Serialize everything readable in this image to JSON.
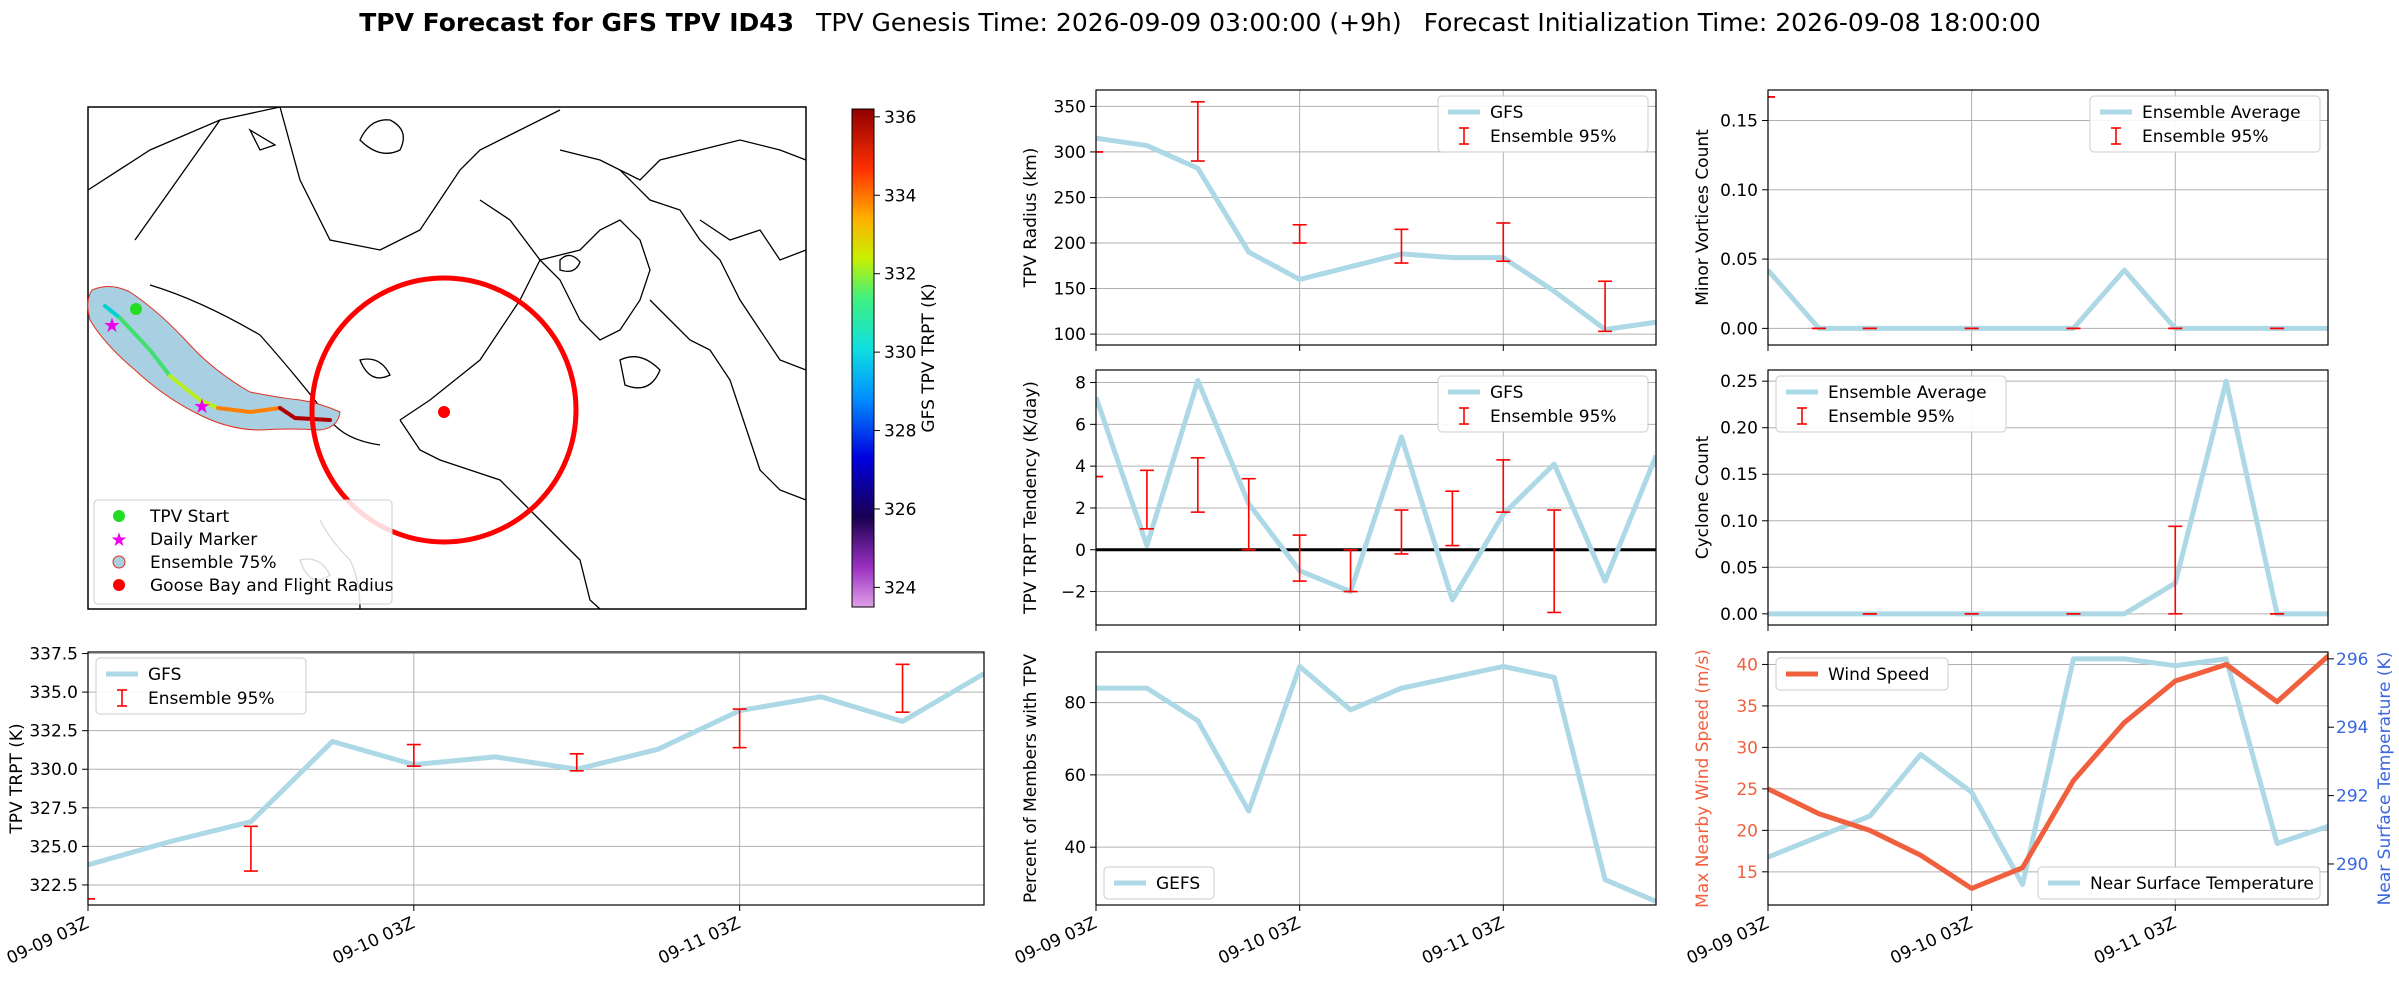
{
  "header": {
    "title_bold": "TPV Forecast for GFS TPV ID43",
    "genesis": "TPV Genesis Time: 2026-09-09 03:00:00 (+9h)",
    "init": "Forecast Initialization Time: 2026-09-08 18:00:00"
  },
  "map": {
    "colorbar": {
      "label": "GFS TPV TRPT (K)",
      "ticks": [
        "324",
        "326",
        "328",
        "330",
        "332",
        "334",
        "336"
      ],
      "range": [
        323.5,
        336.2
      ]
    },
    "legend": [
      {
        "label": "TPV Start",
        "color": "#22dd22",
        "marker": "circle"
      },
      {
        "label": "Daily Marker",
        "color": "#ee00ee",
        "marker": "star"
      },
      {
        "label": "Ensemble 75%",
        "color": "#a9cfe2",
        "marker": "circle-outline"
      },
      {
        "label": "Goose Bay and Flight Radius",
        "color": "#ff0000",
        "marker": "circle"
      }
    ]
  },
  "time_axis": {
    "tick_labels": [
      "09-09 03Z",
      "09-10 03Z",
      "09-11 03Z"
    ]
  },
  "chart_data": [
    {
      "id": "trpt",
      "type": "line",
      "ylabel": "TPV TRPT (K)",
      "ylim": [
        321.2,
        337.6
      ],
      "yticks": [
        322.5,
        325.0,
        327.5,
        330.0,
        332.5,
        335.0,
        337.5
      ],
      "ytick_labels": [
        "322.5",
        "325.0",
        "327.5",
        "330.0",
        "332.5",
        "335.0",
        "337.5"
      ],
      "x": [
        0,
        0.25,
        0.5,
        0.75,
        1,
        1.25,
        1.5,
        1.75,
        2,
        2.25,
        2.5,
        2.75
      ],
      "series": [
        {
          "name": "GFS",
          "values": [
            323.8,
            325.3,
            326.6,
            331.8,
            330.3,
            330.8,
            330.0,
            331.3,
            333.8,
            334.7,
            333.1,
            336.2
          ]
        }
      ],
      "errorbars": {
        "name": "Ensemble 95%",
        "points": [
          [
            0,
            321.6,
            321.6
          ],
          [
            0.5,
            323.4,
            326.3
          ],
          [
            1,
            330.2,
            331.6
          ],
          [
            1.5,
            329.9,
            331.0
          ],
          [
            2,
            331.4,
            333.9
          ],
          [
            2.5,
            333.7,
            336.8
          ]
        ]
      },
      "legend": "upper left"
    },
    {
      "id": "radius",
      "type": "line",
      "ylabel": "TPV Radius (km)",
      "ylim": [
        88,
        368
      ],
      "yticks": [
        100,
        150,
        200,
        250,
        300,
        350
      ],
      "ytick_labels": [
        "100",
        "150",
        "200",
        "250",
        "300",
        "350"
      ],
      "x": [
        0,
        0.25,
        0.5,
        0.75,
        1,
        1.25,
        1.5,
        1.75,
        2,
        2.25,
        2.5,
        2.75
      ],
      "series": [
        {
          "name": "GFS",
          "values": [
            315,
            307,
            282,
            190,
            160,
            174,
            188,
            184,
            184,
            147,
            105,
            113
          ]
        }
      ],
      "errorbars": {
        "name": "Ensemble 95%",
        "points": [
          [
            0,
            300,
            300
          ],
          [
            0.5,
            290,
            355
          ],
          [
            1,
            200,
            220
          ],
          [
            1.5,
            178,
            215
          ],
          [
            2,
            180,
            222
          ],
          [
            2.5,
            103,
            158
          ]
        ]
      },
      "legend": "upper right"
    },
    {
      "id": "tendency",
      "type": "line",
      "ylabel": "TPV TRPT Tendency (K/day)",
      "ylim": [
        -3.6,
        8.6
      ],
      "yticks": [
        -2,
        0,
        2,
        4,
        6,
        8
      ],
      "ytick_labels": [
        "−2",
        "0",
        "2",
        "4",
        "6",
        "8"
      ],
      "zero_line": true,
      "x": [
        0,
        0.25,
        0.5,
        0.75,
        1,
        1.25,
        1.5,
        1.75,
        2,
        2.25,
        2.5,
        2.75
      ],
      "series": [
        {
          "name": "GFS",
          "values": [
            7.3,
            0.2,
            8.1,
            2.2,
            -1.0,
            -2.0,
            5.4,
            -2.4,
            1.7,
            4.1,
            -1.5,
            4.5
          ]
        }
      ],
      "errorbars": {
        "name": "Ensemble 95%",
        "points": [
          [
            0,
            3.5,
            3.5
          ],
          [
            0.25,
            1.0,
            3.8
          ],
          [
            0.5,
            1.8,
            4.4
          ],
          [
            0.75,
            0.0,
            3.4
          ],
          [
            1,
            -1.5,
            0.7
          ],
          [
            1.25,
            -2.0,
            0.0
          ],
          [
            1.5,
            -0.2,
            1.9
          ],
          [
            1.75,
            0.2,
            2.8
          ],
          [
            2,
            1.8,
            4.3
          ],
          [
            2.25,
            -3.0,
            1.9
          ]
        ]
      },
      "legend": "upper right"
    },
    {
      "id": "percent",
      "type": "line",
      "ylabel": "Percent of Members with TPV",
      "ylim": [
        24,
        94
      ],
      "yticks": [
        40,
        60,
        80
      ],
      "ytick_labels": [
        "40",
        "60",
        "80"
      ],
      "x": [
        0,
        0.25,
        0.5,
        0.75,
        1,
        1.25,
        1.5,
        1.75,
        2,
        2.25,
        2.5,
        2.75
      ],
      "series": [
        {
          "name": "GEFS",
          "values": [
            84,
            84,
            75,
            50,
            90,
            78,
            84,
            87,
            90,
            87,
            31,
            25
          ]
        }
      ],
      "legend": "lower left"
    },
    {
      "id": "minor",
      "type": "line",
      "ylabel": "Minor Vortices Count",
      "ylim": [
        -0.012,
        0.172
      ],
      "yticks": [
        0.0,
        0.05,
        0.1,
        0.15
      ],
      "ytick_labels": [
        "0.00",
        "0.05",
        "0.10",
        "0.15"
      ],
      "x": [
        0,
        0.25,
        0.5,
        0.75,
        1,
        1.25,
        1.5,
        1.75,
        2,
        2.25,
        2.5,
        2.75,
        3.0
      ],
      "series": [
        {
          "name": "Ensemble Average",
          "values": [
            0.042,
            0,
            0,
            0,
            0,
            0,
            0,
            0.042,
            0,
            0,
            0,
            0,
            0
          ]
        }
      ],
      "errorbars": {
        "name": "Ensemble 95%",
        "points": [
          [
            0,
            0.167,
            0.167
          ],
          [
            0.25,
            0,
            0
          ],
          [
            0.5,
            0,
            0
          ],
          [
            1,
            0,
            0
          ],
          [
            1.5,
            0,
            0
          ],
          [
            2,
            0,
            0
          ],
          [
            2.5,
            0,
            0
          ]
        ]
      },
      "legend": "upper right"
    },
    {
      "id": "cyclone",
      "type": "line",
      "ylabel": "Cyclone Count",
      "ylim": [
        -0.012,
        0.262
      ],
      "yticks": [
        0.0,
        0.05,
        0.1,
        0.15,
        0.2,
        0.25
      ],
      "ytick_labels": [
        "0.00",
        "0.05",
        "0.10",
        "0.15",
        "0.20",
        "0.25"
      ],
      "x": [
        0,
        0.25,
        0.5,
        0.75,
        1,
        1.25,
        1.5,
        1.75,
        2,
        2.25,
        2.5,
        2.75,
        3.0
      ],
      "series": [
        {
          "name": "Ensemble Average",
          "values": [
            0,
            0,
            0,
            0,
            0,
            0,
            0,
            0,
            0.033,
            0.25,
            0,
            0,
            0
          ]
        }
      ],
      "errorbars": {
        "name": "Ensemble 95%",
        "points": [
          [
            0.5,
            0,
            0
          ],
          [
            1,
            0,
            0
          ],
          [
            1.5,
            0,
            0
          ],
          [
            2,
            0,
            0.094
          ],
          [
            2.5,
            0,
            0
          ]
        ]
      },
      "legend": "upper left"
    },
    {
      "id": "weather",
      "type": "line",
      "ylabel": "Max Nearby Wind Speed (m/s)",
      "ylabel_right": "Near Surface Temperature (K)",
      "ylim": [
        11,
        41.5
      ],
      "ylim_right": [
        288.8,
        296.2
      ],
      "yticks": [
        15,
        20,
        25,
        30,
        35,
        40
      ],
      "ytick_labels": [
        "15",
        "20",
        "25",
        "30",
        "35",
        "40"
      ],
      "yticks_right": [
        290,
        292,
        294,
        296
      ],
      "ytick_labels_right": [
        "290",
        "292",
        "294",
        "296"
      ],
      "x": [
        0,
        0.25,
        0.5,
        0.75,
        1,
        1.25,
        1.5,
        1.75,
        2,
        2.25,
        2.5,
        2.75,
        3.0
      ],
      "series": [
        {
          "name": "Wind Speed",
          "color": "#f0603f",
          "axis": "left",
          "values": [
            25,
            22,
            20,
            17,
            13,
            15.5,
            26,
            33,
            38,
            40,
            35.5,
            41,
            41
          ]
        },
        {
          "name": "Near Surface Temperature",
          "color": "#add8e6",
          "axis": "right",
          "values": [
            290.2,
            290.8,
            291.4,
            293.2,
            292.1,
            289.4,
            296.0,
            296.0,
            295.8,
            296.0,
            290.6,
            291.1,
            291.1
          ]
        }
      ],
      "legend_left": "upper left",
      "legend_right": "lower right"
    }
  ]
}
